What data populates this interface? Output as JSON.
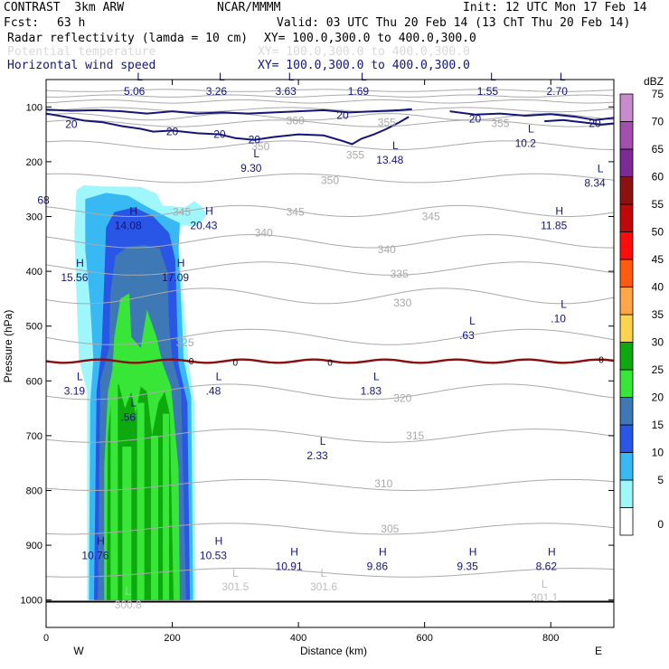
{
  "header": {
    "experiment": "CONTRAST  3km ARW",
    "org": "NCAR/MMMM",
    "init": "Init: 12 UTC Mon 17 Feb 14",
    "fcst_label": "Fcst:",
    "fcst_value": "63 h",
    "valid": "Valid: 03 UTC Thu 20 Feb 14 (13 ChT Thu 20 Feb 14)",
    "field1": "Radar reflectivity (lamda = 10 cm)",
    "field1_xy": "XY= 100.0,300.0 to 400.0,300.0",
    "field2": "Potential temperature",
    "field2_xy": "XY= 100.0,300.0 to 400.0,300.0",
    "field3": "Horizontal wind speed",
    "field3_xy": "XY= 100.0,300.0 to 400.0,300.0"
  },
  "colors": {
    "reflectivity_scale": [
      "#ffffff",
      "#9ff6fb",
      "#39b9f4",
      "#2a56e8",
      "#3e79b5",
      "#37e637",
      "#0ea90e",
      "#ffd34d",
      "#ffa54a",
      "#ff5a10",
      "#ff0d0d",
      "#c10808",
      "#8c1212",
      "#7d2a96",
      "#a44eb0",
      "#c98bcd"
    ],
    "wind_contour": "#14147a",
    "theta_contour": "#a9a9a9",
    "freezing_line": "#8b0d0d",
    "label_blue": "#14147a"
  },
  "chart_data": {
    "type": "cross-section",
    "xlabel": "Distance (km)",
    "ylabel": "Pressure (hPa)",
    "xlim": [
      0,
      900
    ],
    "ylim": [
      1050,
      50
    ],
    "x_ticks": [
      0,
      200,
      400,
      600,
      800
    ],
    "x_tick_labels": [
      "0",
      "200",
      "400",
      "600",
      "800"
    ],
    "y_ticks": [
      100,
      200,
      300,
      400,
      500,
      600,
      700,
      800,
      900,
      1000
    ],
    "y_tick_labels": [
      "100",
      "200",
      "300",
      "400",
      "500",
      "600",
      "700",
      "800",
      "900",
      "1000"
    ],
    "west_label": "W",
    "east_label": "E",
    "colorbar": {
      "unit": "dBZ",
      "levels": [
        0,
        5,
        10,
        15,
        20,
        25,
        30,
        35,
        40,
        45,
        50,
        55,
        60,
        65,
        70,
        75
      ],
      "labels": [
        "0",
        "5",
        "10",
        "15",
        "20",
        "25",
        "30",
        "35",
        "40",
        "45",
        "50",
        "55",
        "60",
        "65",
        "70",
        "75"
      ]
    },
    "wind_contour_label": "20",
    "freezing_label": "0",
    "theta_labels": [
      {
        "text": "360",
        "x": 395,
        "p": 125
      },
      {
        "text": "355",
        "x": 540,
        "p": 128
      },
      {
        "text": "355",
        "x": 720,
        "p": 130
      },
      {
        "text": "350",
        "x": 340,
        "p": 172
      },
      {
        "text": "355",
        "x": 490,
        "p": 188
      },
      {
        "text": "350",
        "x": 450,
        "p": 234
      },
      {
        "text": "345",
        "x": 215,
        "p": 292
      },
      {
        "text": "345",
        "x": 395,
        "p": 292
      },
      {
        "text": "345",
        "x": 610,
        "p": 300
      },
      {
        "text": "340",
        "x": 345,
        "p": 330
      },
      {
        "text": "340",
        "x": 540,
        "p": 360
      },
      {
        "text": "335",
        "x": 560,
        "p": 405
      },
      {
        "text": "330",
        "x": 565,
        "p": 458
      },
      {
        "text": "325",
        "x": 220,
        "p": 530
      },
      {
        "text": "320",
        "x": 565,
        "p": 632
      },
      {
        "text": "315",
        "x": 585,
        "p": 700
      },
      {
        "text": "310",
        "x": 535,
        "p": 788
      },
      {
        "text": "305",
        "x": 545,
        "p": 870
      }
    ],
    "max_min_labels": [
      {
        "kind": "L",
        "value": "5.06",
        "x": 140,
        "p": 65
      },
      {
        "kind": "L",
        "value": "3.26",
        "x": 270,
        "p": 65
      },
      {
        "kind": "L",
        "value": "3.63",
        "x": 380,
        "p": 65
      },
      {
        "kind": "L",
        "value": "1.69",
        "x": 495,
        "p": 65
      },
      {
        "kind": "L",
        "value": "1.55",
        "x": 700,
        "p": 65
      },
      {
        "kind": "L",
        "value": "2.70",
        "x": 810,
        "p": 65
      },
      {
        "kind": "L",
        "value": "10.2",
        "x": 760,
        "p": 160
      },
      {
        "kind": "L",
        "value": "9.30",
        "x": 325,
        "p": 205
      },
      {
        "kind": "L",
        "value": "13.48",
        "x": 545,
        "p": 190
      },
      {
        "kind": "L",
        "value": "8.34",
        "x": 870,
        "p": 232
      },
      {
        "kind": "H",
        "value": "14.08",
        "x": 130,
        "p": 310
      },
      {
        "kind": "H",
        "value": "20.43",
        "x": 250,
        "p": 310
      },
      {
        "kind": "H",
        "value": "11.85",
        "x": 805,
        "p": 310
      },
      {
        "kind": "H",
        "value": "15.56",
        "x": 45,
        "p": 405
      },
      {
        "kind": "H",
        "value": "17.09",
        "x": 205,
        "p": 405
      },
      {
        "kind": "L",
        "value": ".10",
        "x": 812,
        "p": 480
      },
      {
        "kind": "L",
        "value": ".63",
        "x": 667,
        "p": 510
      },
      {
        "kind": "L",
        "value": "3.19",
        "x": 45,
        "p": 612
      },
      {
        "kind": "L",
        "value": ".48",
        "x": 265,
        "p": 612
      },
      {
        "kind": "L",
        "value": "1.83",
        "x": 515,
        "p": 612
      },
      {
        "kind": "L",
        "value": ".56",
        "x": 130,
        "p": 660
      },
      {
        "kind": "L",
        "value": "2.33",
        "x": 430,
        "p": 730
      },
      {
        "kind": "H",
        "value": "10.76",
        "x": 78,
        "p": 912
      },
      {
        "kind": "H",
        "value": "10.53",
        "x": 265,
        "p": 912
      },
      {
        "kind": "H",
        "value": "10.91",
        "x": 385,
        "p": 932
      },
      {
        "kind": "H",
        "value": "9.86",
        "x": 525,
        "p": 932
      },
      {
        "kind": "H",
        "value": "9.35",
        "x": 668,
        "p": 932
      },
      {
        "kind": "H",
        "value": "8.62",
        "x": 793,
        "p": 932
      }
    ],
    "theta_extrema": [
      {
        "kind": "L",
        "value": "301.5",
        "x": 300,
        "p": 977
      },
      {
        "kind": "L",
        "value": "301.6",
        "x": 440,
        "p": 977
      },
      {
        "kind": "L",
        "value": "301.1",
        "x": 790,
        "p": 997
      },
      {
        "kind": "L",
        "value": "300.8",
        "x": 130,
        "p": 1010
      }
    ],
    "edge_label": {
      "value": "68",
      "x": 0,
      "p": 270
    }
  }
}
